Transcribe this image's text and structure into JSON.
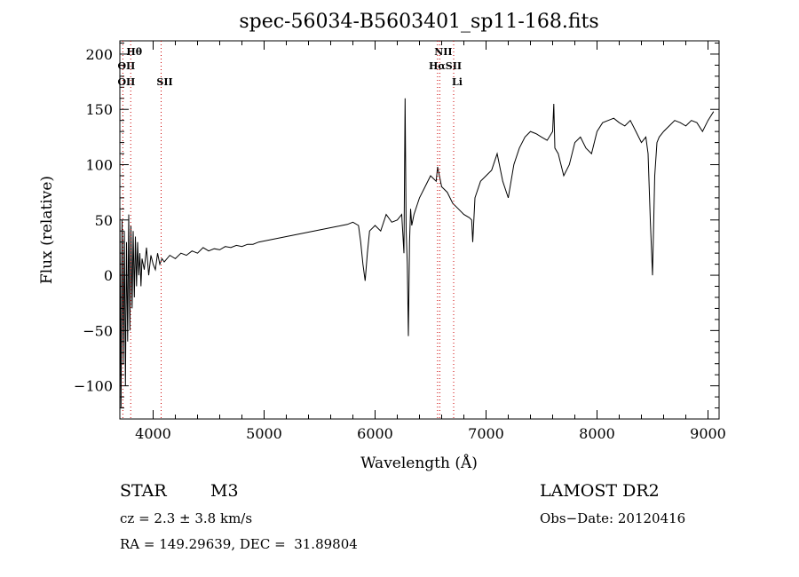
{
  "chart_data": {
    "type": "line",
    "title": "spec-56034-B5603401_sp11-168.fits",
    "xlabel": "Wavelength (Å)",
    "ylabel": "Flux (relative)",
    "xlim": [
      3700,
      9100
    ],
    "ylim": [
      -130,
      212
    ],
    "x_ticks": [
      4000,
      5000,
      6000,
      7000,
      8000,
      9000
    ],
    "y_ticks": [
      -100,
      -50,
      0,
      50,
      100,
      150,
      200
    ],
    "y_tick_labels": [
      "−100",
      "−50",
      "0",
      "50",
      "100",
      "150",
      "200"
    ],
    "grid": false,
    "series": [
      {
        "x": [
          3700,
          3710,
          3720,
          3730,
          3740,
          3750,
          3760,
          3770,
          3780,
          3790,
          3800,
          3810,
          3820,
          3830,
          3840,
          3850,
          3860,
          3870,
          3880,
          3890,
          3900,
          3920,
          3940,
          3960,
          3980,
          4000,
          4020,
          4040,
          4060,
          4080,
          4100,
          4150,
          4200,
          4250,
          4300,
          4350,
          4400,
          4450,
          4500,
          4550,
          4600,
          4650,
          4700,
          4750,
          4800,
          4850,
          4900,
          4950,
          5000,
          5050,
          5100,
          5150,
          5200,
          5250,
          5300,
          5350,
          5400,
          5450,
          5500,
          5550,
          5600,
          5650,
          5700,
          5750,
          5800,
          5850,
          5870,
          5890,
          5910,
          5930,
          5950,
          6000,
          6050,
          6100,
          6150,
          6200,
          6240,
          6260,
          6270,
          6280,
          6290,
          6300,
          6310,
          6320,
          6330,
          6350,
          6400,
          6450,
          6500,
          6550,
          6563,
          6600,
          6650,
          6700,
          6750,
          6800,
          6850,
          6870,
          6880,
          6900,
          6950,
          7000,
          7050,
          7100,
          7150,
          7200,
          7250,
          7300,
          7350,
          7400,
          7450,
          7500,
          7550,
          7600,
          7610,
          7620,
          7650,
          7700,
          7750,
          7800,
          7850,
          7900,
          7950,
          8000,
          8050,
          8100,
          8150,
          8200,
          8250,
          8300,
          8350,
          8400,
          8440,
          8460,
          8480,
          8500,
          8520,
          8540,
          8560,
          8600,
          8650,
          8700,
          8750,
          8800,
          8850,
          8900,
          8950,
          9000,
          9050
        ],
        "y": [
          60,
          -120,
          50,
          -80,
          40,
          -100,
          30,
          -60,
          55,
          -50,
          45,
          -30,
          40,
          -20,
          35,
          -10,
          30,
          0,
          20,
          -10,
          15,
          5,
          25,
          0,
          18,
          10,
          5,
          20,
          10,
          15,
          12,
          18,
          15,
          20,
          18,
          22,
          20,
          25,
          22,
          24,
          23,
          26,
          25,
          27,
          26,
          28,
          28,
          30,
          31,
          32,
          33,
          34,
          35,
          36,
          37,
          38,
          39,
          40,
          41,
          42,
          43,
          44,
          45,
          46,
          48,
          45,
          30,
          10,
          -5,
          20,
          40,
          45,
          40,
          55,
          48,
          50,
          55,
          20,
          160,
          40,
          10,
          -55,
          30,
          60,
          45,
          55,
          70,
          80,
          90,
          85,
          98,
          80,
          75,
          65,
          60,
          55,
          52,
          50,
          30,
          70,
          85,
          90,
          95,
          110,
          85,
          70,
          100,
          115,
          125,
          130,
          128,
          125,
          122,
          130,
          155,
          115,
          110,
          90,
          100,
          120,
          125,
          115,
          110,
          130,
          138,
          140,
          142,
          138,
          135,
          140,
          130,
          120,
          125,
          110,
          50,
          0,
          90,
          120,
          125,
          130,
          135,
          140,
          138,
          135,
          140,
          138,
          130,
          140,
          148
        ]
      }
    ],
    "annotations": [
      {
        "label": "Hθ",
        "x": 3798,
        "row": 0
      },
      {
        "label": "OII",
        "x": 3727,
        "row": 1
      },
      {
        "label": "OII",
        "x": 3727,
        "row": 2
      },
      {
        "label": "SII",
        "x": 4072,
        "row": 2
      },
      {
        "label": "NII",
        "x": 6583,
        "row": 0
      },
      {
        "label": "HαSII",
        "x": 6600,
        "row": 1
      },
      {
        "label": "Li",
        "x": 6708,
        "row": 2
      }
    ],
    "marker_lines": [
      3727,
      3798,
      4072,
      6563,
      6583,
      6708
    ]
  },
  "footer": {
    "object_class": "STAR",
    "subclass": "M3",
    "survey": "LAMOST DR2",
    "redshift": "cz = 2.3 ± 3.8 km/s",
    "obs_date": "Obs−Date: 20120416",
    "coords": "RA = 149.29639, DEC =  31.89804"
  },
  "colors": {
    "spectrum": "#000000",
    "marker_line": "#cc0000",
    "axis": "#000000"
  }
}
